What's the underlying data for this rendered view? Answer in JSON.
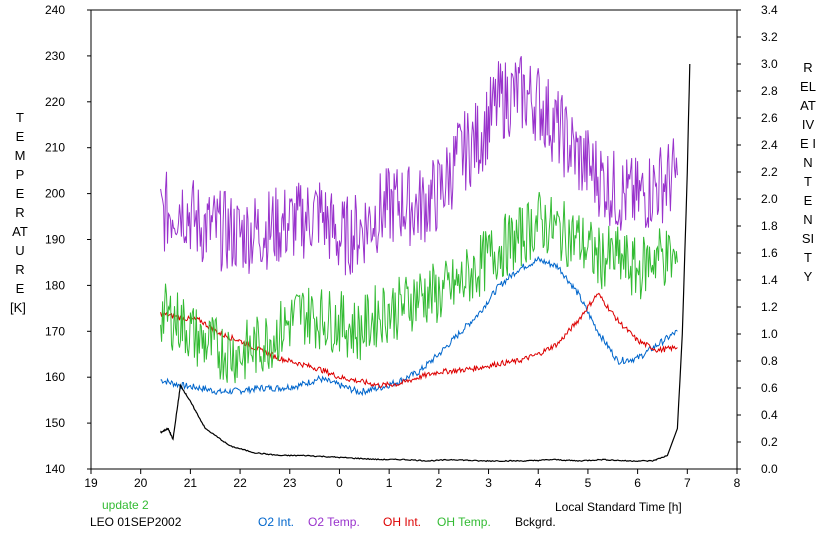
{
  "chart_data": {
    "type": "line",
    "xlabel": "Local Standard Time [h]",
    "ylabel": "TEMPERATURE",
    "ylabel_unit": "[K]",
    "y2label": "RELATIVE INTENSITY",
    "xlim": [
      19,
      32
    ],
    "ylim": [
      140,
      240
    ],
    "y2lim": [
      0.0,
      3.4
    ],
    "x_ticks": [
      "19",
      "20",
      "21",
      "22",
      "23",
      "0",
      "1",
      "2",
      "3",
      "4",
      "5",
      "6",
      "7",
      "8"
    ],
    "y_ticks": [
      "140",
      "150",
      "160",
      "170",
      "180",
      "190",
      "200",
      "210",
      "220",
      "230",
      "240"
    ],
    "y2_ticks": [
      "0.0",
      "0.2",
      "0.4",
      "0.6",
      "0.8",
      "1.0",
      "1.2",
      "1.4",
      "1.6",
      "1.8",
      "2.0",
      "2.2",
      "2.4",
      "2.6",
      "2.8",
      "3.0",
      "3.2",
      "3.4"
    ],
    "grid": false,
    "status_text": "update 2",
    "station_text": "LEO 01SEP2002",
    "series": [
      {
        "name": "O2 Int.",
        "axis": "right",
        "color": "#0066cc",
        "x": [
          20.4,
          20.8,
          21.2,
          21.6,
          22.0,
          22.4,
          22.8,
          23.2,
          23.6,
          24.0,
          24.4,
          24.8,
          25.2,
          25.6,
          26.0,
          26.4,
          26.8,
          27.2,
          27.6,
          28.0,
          28.4,
          28.8,
          29.2,
          29.6,
          30.0,
          30.4,
          30.8
        ],
        "y": [
          0.66,
          0.62,
          0.6,
          0.57,
          0.58,
          0.6,
          0.6,
          0.62,
          0.67,
          0.62,
          0.57,
          0.6,
          0.65,
          0.72,
          0.85,
          1.0,
          1.15,
          1.35,
          1.48,
          1.55,
          1.5,
          1.3,
          1.02,
          0.8,
          0.82,
          0.92,
          1.02
        ]
      },
      {
        "name": "O2 Temp.",
        "axis": "left",
        "color": "#9933cc",
        "x": [
          20.4,
          20.8,
          21.2,
          21.6,
          22.0,
          22.4,
          22.8,
          23.2,
          23.6,
          24.0,
          24.4,
          24.8,
          25.2,
          25.6,
          26.0,
          26.4,
          26.8,
          27.2,
          27.6,
          28.0,
          28.4,
          28.8,
          29.2,
          29.6,
          30.0,
          30.4,
          30.8
        ],
        "y": [
          195,
          198,
          193,
          192,
          191,
          192,
          193,
          194,
          196,
          190,
          192,
          196,
          198,
          197,
          200,
          208,
          212,
          220,
          222,
          220,
          214,
          208,
          204,
          200,
          199,
          202,
          204
        ]
      },
      {
        "name": "OH Int.",
        "axis": "right",
        "color": "#dd0000",
        "x": [
          20.4,
          20.8,
          21.2,
          21.6,
          22.0,
          22.4,
          22.8,
          23.2,
          23.6,
          24.0,
          24.4,
          24.8,
          25.2,
          25.6,
          26.0,
          26.4,
          26.8,
          27.2,
          27.6,
          28.0,
          28.4,
          28.8,
          29.2,
          29.6,
          30.0,
          30.4,
          30.8
        ],
        "y": [
          1.15,
          1.12,
          1.1,
          1.0,
          0.95,
          0.88,
          0.82,
          0.78,
          0.74,
          0.68,
          0.65,
          0.62,
          0.63,
          0.68,
          0.72,
          0.73,
          0.75,
          0.78,
          0.8,
          0.85,
          0.93,
          1.1,
          1.3,
          1.1,
          0.95,
          0.88,
          0.9
        ]
      },
      {
        "name": "OH Temp.",
        "axis": "left",
        "color": "#33bb33",
        "x": [
          20.4,
          20.8,
          21.2,
          21.6,
          22.0,
          22.4,
          22.8,
          23.2,
          23.6,
          24.0,
          24.4,
          24.8,
          25.2,
          25.6,
          26.0,
          26.4,
          26.8,
          27.2,
          27.6,
          28.0,
          28.4,
          28.8,
          29.2,
          29.6,
          30.0,
          30.4,
          30.8
        ],
        "y": [
          174,
          172,
          168,
          166,
          165,
          167,
          170,
          174,
          173,
          172,
          170,
          174,
          175,
          178,
          178,
          180,
          184,
          188,
          190,
          194,
          192,
          190,
          186,
          186,
          183,
          187,
          185
        ]
      },
      {
        "name": "Bckgrd.",
        "axis": "right",
        "color": "#000000",
        "x": [
          20.4,
          20.55,
          20.65,
          20.8,
          21.0,
          21.3,
          21.8,
          22.3,
          22.8,
          23.3,
          23.8,
          24.3,
          24.8,
          25.3,
          25.8,
          26.3,
          26.8,
          27.3,
          27.8,
          28.3,
          28.8,
          29.3,
          29.8,
          30.3,
          30.6,
          30.8,
          30.9,
          31.0,
          31.05
        ],
        "y": [
          0.27,
          0.3,
          0.22,
          0.62,
          0.5,
          0.3,
          0.17,
          0.12,
          0.1,
          0.1,
          0.09,
          0.08,
          0.07,
          0.07,
          0.06,
          0.07,
          0.06,
          0.06,
          0.06,
          0.07,
          0.06,
          0.07,
          0.06,
          0.06,
          0.1,
          0.3,
          1.0,
          2.2,
          3.0
        ]
      }
    ]
  }
}
